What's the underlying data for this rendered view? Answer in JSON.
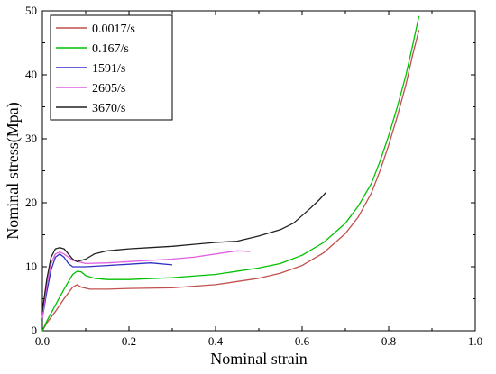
{
  "chart_data": {
    "type": "line",
    "xlabel": "Nominal strain",
    "ylabel": "Nominal stress(Mpa)",
    "xlim": [
      0.0,
      1.0
    ],
    "ylim": [
      0,
      50
    ],
    "x_ticks": [
      "0.0",
      "0.2",
      "0.4",
      "0.6",
      "0.8",
      "1.0"
    ],
    "y_ticks": [
      "0",
      "10",
      "20",
      "30",
      "40",
      "50"
    ],
    "grid": false,
    "legend_position": "top-left",
    "series": [
      {
        "name": "0.0017/s",
        "color": "#c0504d",
        "x": [
          0.0,
          0.01,
          0.03,
          0.05,
          0.07,
          0.08,
          0.09,
          0.11,
          0.15,
          0.2,
          0.3,
          0.4,
          0.5,
          0.55,
          0.6,
          0.65,
          0.7,
          0.73,
          0.76,
          0.78,
          0.8,
          0.82,
          0.84,
          0.855,
          0.87
        ],
        "y": [
          0,
          1.2,
          3.0,
          5.0,
          6.8,
          7.2,
          6.8,
          6.5,
          6.5,
          6.6,
          6.7,
          7.2,
          8.2,
          9.0,
          10.2,
          12.2,
          15.2,
          17.8,
          21.5,
          25.0,
          29.0,
          33.5,
          38.5,
          43.0,
          47.0
        ]
      },
      {
        "name": "0.167/s",
        "color": "#00c000",
        "x": [
          0.0,
          0.01,
          0.03,
          0.05,
          0.07,
          0.08,
          0.09,
          0.1,
          0.12,
          0.15,
          0.2,
          0.3,
          0.4,
          0.5,
          0.55,
          0.6,
          0.65,
          0.7,
          0.73,
          0.76,
          0.78,
          0.8,
          0.82,
          0.84,
          0.855,
          0.87
        ],
        "y": [
          0,
          1.5,
          4.0,
          6.5,
          8.8,
          9.3,
          9.2,
          8.6,
          8.2,
          8.0,
          8.0,
          8.3,
          8.8,
          9.8,
          10.5,
          11.8,
          13.8,
          16.8,
          19.5,
          23.0,
          26.5,
          30.5,
          35.0,
          40.0,
          44.5,
          49.2
        ]
      },
      {
        "name": "1591/s",
        "color": "#3030c0",
        "x": [
          0.0,
          0.01,
          0.02,
          0.03,
          0.04,
          0.05,
          0.06,
          0.07,
          0.1,
          0.15,
          0.2,
          0.25,
          0.3
        ],
        "y": [
          2.0,
          6.0,
          9.5,
          11.5,
          12.0,
          11.5,
          10.5,
          10.0,
          10.0,
          10.2,
          10.4,
          10.6,
          10.3
        ]
      },
      {
        "name": "2605/s",
        "color": "#e060e0",
        "x": [
          0.0,
          0.01,
          0.02,
          0.03,
          0.04,
          0.05,
          0.07,
          0.1,
          0.15,
          0.2,
          0.25,
          0.3,
          0.35,
          0.4,
          0.45,
          0.48
        ],
        "y": [
          2.0,
          7.0,
          10.5,
          12.0,
          12.3,
          12.0,
          11.0,
          10.5,
          10.6,
          10.8,
          11.0,
          11.2,
          11.5,
          12.0,
          12.5,
          12.4
        ]
      },
      {
        "name": "3670/s",
        "color": "#202020",
        "x": [
          0.0,
          0.01,
          0.02,
          0.03,
          0.04,
          0.05,
          0.06,
          0.07,
          0.08,
          0.1,
          0.12,
          0.15,
          0.2,
          0.25,
          0.3,
          0.35,
          0.4,
          0.45,
          0.5,
          0.55,
          0.58,
          0.6,
          0.62,
          0.64,
          0.655
        ],
        "y": [
          3.0,
          8.0,
          11.5,
          12.8,
          13.0,
          12.8,
          12.0,
          11.2,
          10.8,
          11.2,
          12.0,
          12.5,
          12.8,
          13.0,
          13.2,
          13.5,
          13.8,
          14.0,
          14.8,
          15.8,
          16.8,
          18.0,
          19.2,
          20.5,
          21.6
        ]
      }
    ]
  }
}
